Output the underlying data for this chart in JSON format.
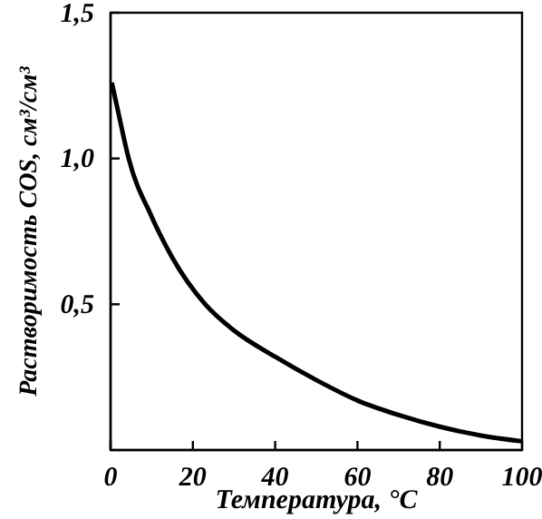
{
  "chart_data": {
    "type": "line",
    "xlabel": "Температура, °C",
    "ylabel": "Растворимость COS, см³/см³",
    "x": [
      0.3,
      2,
      4.4,
      10,
      15,
      23,
      30,
      40,
      50,
      60,
      70,
      80,
      90,
      100
    ],
    "series": [
      {
        "color": "#000000",
        "values": [
          1.26,
          1.15,
          1.0,
          0.8,
          0.66,
          0.5,
          0.41,
          0.32,
          0.24,
          0.17,
          0.12,
          0.08,
          0.05,
          0.03
        ]
      }
    ],
    "xlim": [
      0,
      100
    ],
    "xticks": [
      0,
      20,
      40,
      60,
      80,
      100
    ],
    "ylim": [
      0,
      1.5
    ],
    "yticks": [
      {
        "value": 0.5,
        "label": "0,5"
      },
      {
        "value": 1.0,
        "label": "1,0"
      },
      {
        "value": 1.5,
        "label": "1,5"
      }
    ],
    "line_style": "solid"
  }
}
